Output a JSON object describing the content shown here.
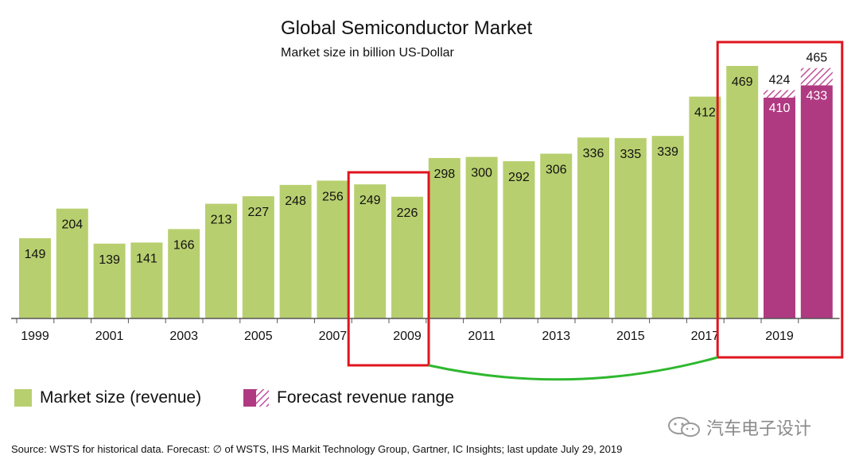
{
  "chart_data": {
    "type": "bar",
    "title": "Global Semiconductor Market",
    "subtitle": "Market size in billion US-Dollar",
    "categories": [
      "1999",
      "2000",
      "2001",
      "2002",
      "2003",
      "2004",
      "2005",
      "2006",
      "2007",
      "2008",
      "2009",
      "2010",
      "2011",
      "2012",
      "2013",
      "2014",
      "2015",
      "2016",
      "2017",
      "2018",
      "2019",
      "2020"
    ],
    "tick_labels": [
      "1999",
      "2001",
      "2003",
      "2005",
      "2007",
      "2009",
      "2011",
      "2013",
      "2015",
      "2017",
      "2019"
    ],
    "series": [
      {
        "name": "Market size (revenue)",
        "color": "#b8cf6f",
        "values": [
          149,
          204,
          139,
          141,
          166,
          213,
          227,
          248,
          256,
          249,
          226,
          298,
          300,
          292,
          306,
          336,
          335,
          339,
          412,
          469,
          null,
          null
        ]
      },
      {
        "name": "Forecast revenue range",
        "color": "#b03a82",
        "low": [
          null,
          null,
          null,
          null,
          null,
          null,
          null,
          null,
          null,
          null,
          null,
          null,
          null,
          null,
          null,
          null,
          null,
          null,
          null,
          null,
          410,
          433
        ],
        "high": [
          null,
          null,
          null,
          null,
          null,
          null,
          null,
          null,
          null,
          null,
          null,
          null,
          null,
          null,
          null,
          null,
          null,
          null,
          null,
          null,
          424,
          465
        ]
      }
    ],
    "ylim": [
      0,
      500
    ],
    "xlabel": "",
    "ylabel": "",
    "grid": false,
    "legend_position": "bottom-left",
    "annotations": [
      "red box around 2008-2009",
      "red box around 2018-2020",
      "green connector line"
    ]
  },
  "legend": {
    "market_label": "Market size (revenue)",
    "forecast_label": "Forecast revenue range"
  },
  "source": "Source: WSTS for historical data. Forecast: ∅ of WSTS, IHS Markit Technology Group, Gartner, IC Insights; last update July 29, 2019",
  "watermark": "汽车电子设计",
  "colors": {
    "green": "#b8cf6f",
    "magenta": "#b03a82",
    "hatch": "#d98ab8",
    "red": "#e0141e",
    "connector": "#2eb82e",
    "axis": "#555555"
  }
}
